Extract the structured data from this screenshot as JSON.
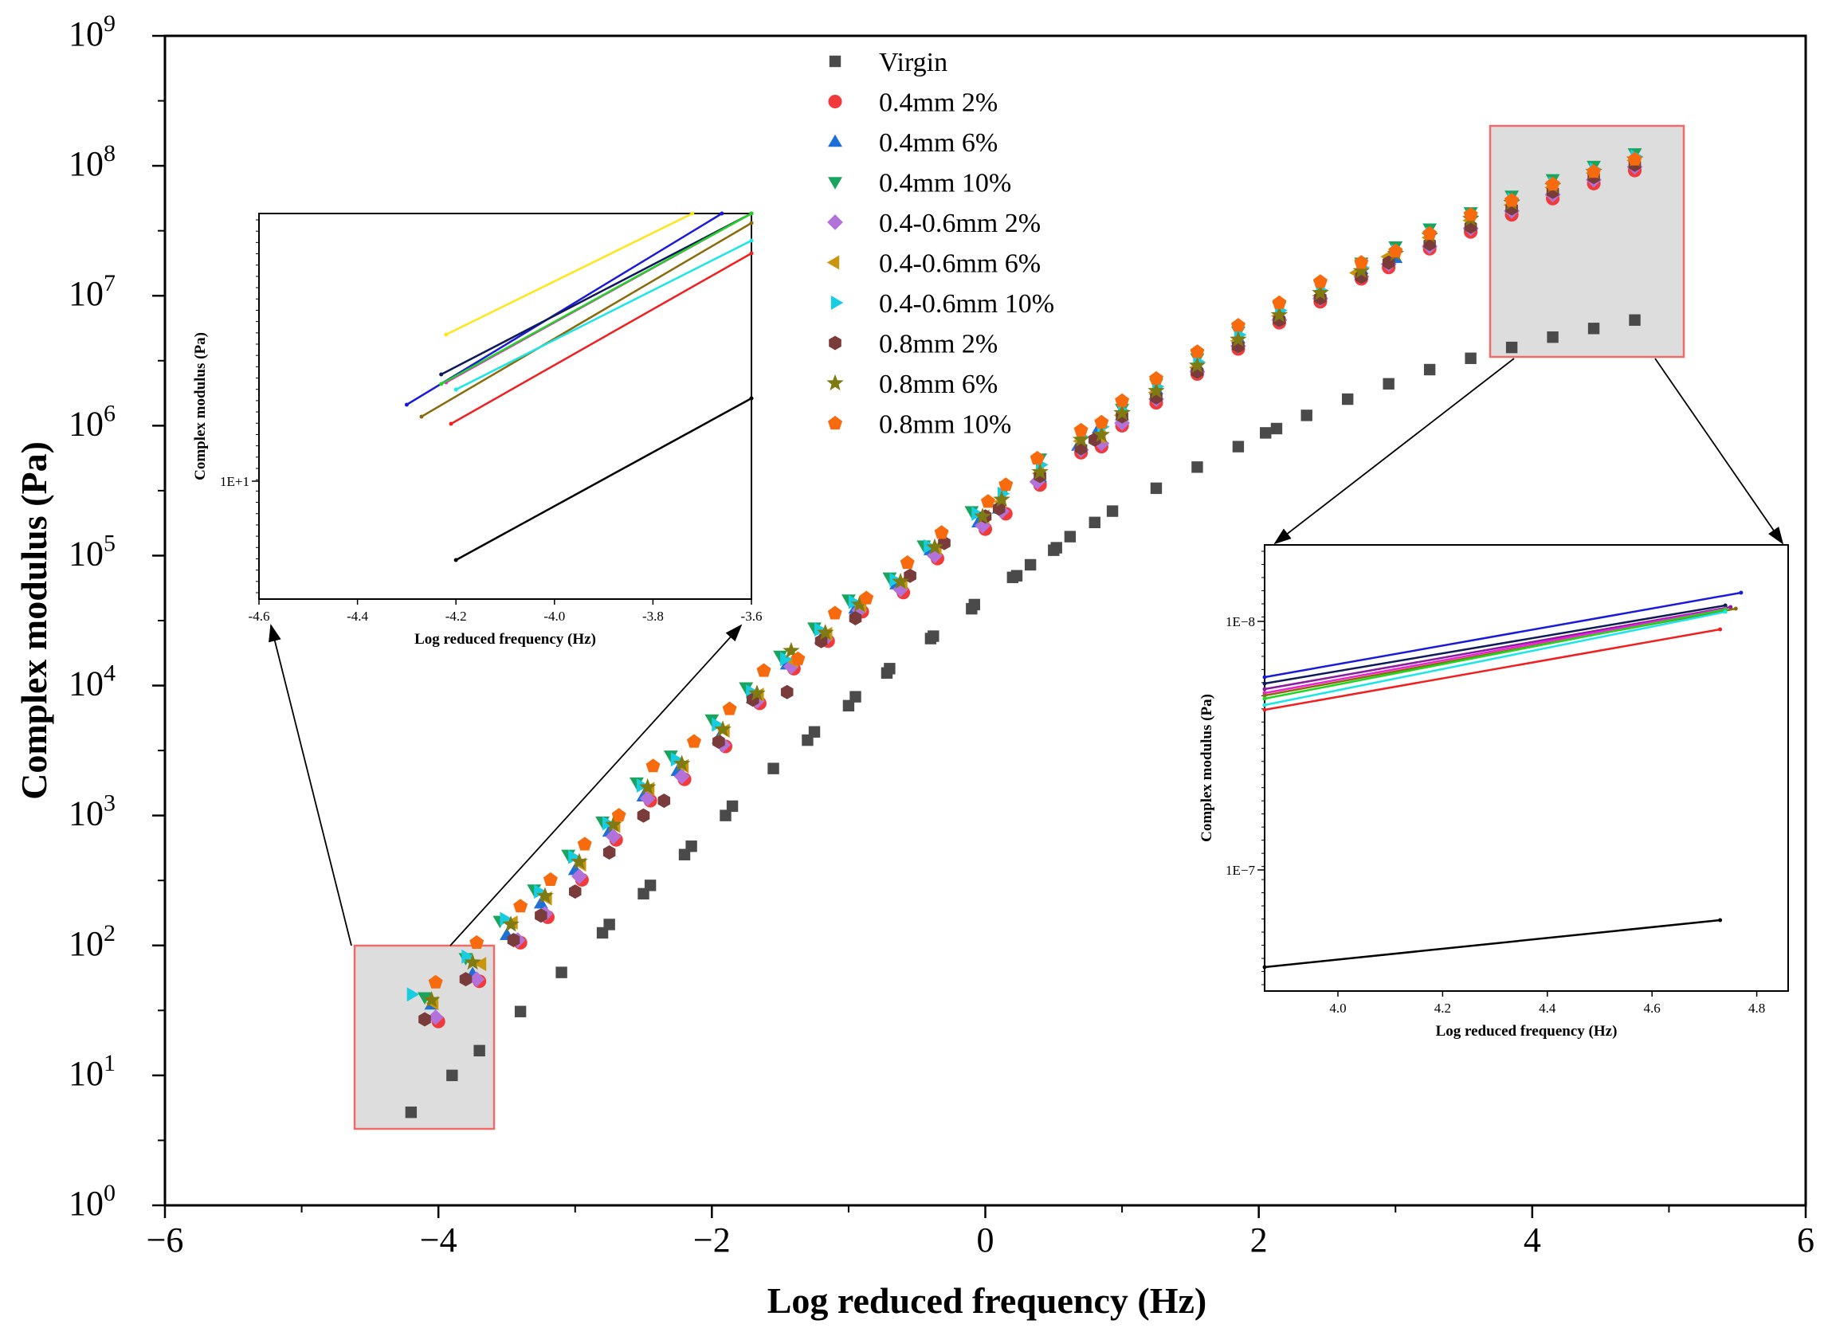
{
  "chart_data": {
    "type": "scatter",
    "title": "",
    "xlabel": "Log reduced frequency (Hz)",
    "ylabel": "Complex modulus (Pa)",
    "xlim": [
      -6,
      6
    ],
    "ylim_log10": [
      0,
      9
    ],
    "yscale": "log",
    "x_ticks": [
      "−6",
      "−4",
      "−2",
      "0",
      "2",
      "4",
      "6"
    ],
    "y_tick_base": "10",
    "y_tick_exponents": [
      "0",
      "1",
      "2",
      "3",
      "4",
      "5",
      "6",
      "7",
      "8",
      "9"
    ],
    "legend_position": "top-center",
    "series": [
      {
        "name": "Virgin",
        "marker": "square",
        "color": "#4a4a4a",
        "x": [
          -4.2,
          -3.9,
          -3.7,
          -3.4,
          -3.1,
          -2.8,
          -2.75,
          -2.5,
          -2.45,
          -2.2,
          -2.15,
          -1.9,
          -1.85,
          -1.55,
          -1.3,
          -1.25,
          -1.0,
          -0.95,
          -0.72,
          -0.7,
          -0.4,
          -0.38,
          -0.1,
          -0.08,
          0.2,
          0.23,
          0.33,
          0.5,
          0.52,
          0.62,
          0.8,
          0.93,
          1.25,
          1.55,
          1.85,
          2.05,
          2.13,
          2.35,
          2.65,
          2.95,
          3.25,
          3.55,
          3.85,
          4.15,
          4.45,
          4.75
        ],
        "y": [
          5.2,
          10,
          15.5,
          31,
          62,
          125,
          145,
          250,
          290,
          500,
          580,
          1000,
          1180,
          2300,
          3800,
          4400,
          7000,
          8200,
          12500,
          13500,
          23000,
          24000,
          39000,
          42000,
          68000,
          70000,
          85000,
          110000,
          115000,
          140000,
          180000,
          220000,
          330000,
          480000,
          690000,
          880000,
          950000,
          1200000,
          1600000,
          2100000,
          2700000,
          3300000,
          4000000,
          4800000,
          5600000,
          6500000
        ]
      },
      {
        "name": "0.4mm 2%",
        "marker": "circle",
        "color": "#f23a3a",
        "x": [
          -4.0,
          -3.7,
          -3.4,
          -3.2,
          -2.95,
          -2.7,
          -2.45,
          -2.2,
          -1.9,
          -1.65,
          -1.4,
          -1.15,
          -0.9,
          -0.6,
          -0.35,
          0.0,
          0.15,
          0.4,
          0.7,
          0.85,
          1.0,
          1.25,
          1.55,
          1.85,
          2.15,
          2.45,
          2.75,
          2.95,
          3.25,
          3.55,
          3.85,
          4.15,
          4.45,
          4.75
        ],
        "y": [
          26,
          53,
          105,
          165,
          320,
          650,
          1300,
          1900,
          3400,
          7300,
          13500,
          22000,
          37000,
          52000,
          95000,
          160000,
          210000,
          350000,
          620000,
          690000,
          1000000,
          1500000,
          2500000,
          3900000,
          6200000,
          9000000,
          13500000,
          16500000,
          23000000,
          31000000,
          42000000,
          56000000,
          73000000,
          92000000
        ]
      },
      {
        "name": "0.4mm 6%",
        "marker": "triangle-up",
        "color": "#1e6fd9",
        "x": [
          -4.05,
          -3.75,
          -3.5,
          -3.25,
          -3.0,
          -2.75,
          -2.5,
          -2.25,
          -1.95,
          -1.7,
          -1.45,
          -1.2,
          -0.95,
          -0.65,
          -0.4,
          -0.05,
          0.1,
          0.4,
          0.68,
          0.83,
          1.0,
          1.25,
          1.55,
          1.85,
          2.15,
          2.45,
          2.75,
          3.0,
          3.25,
          3.55,
          3.85,
          4.15,
          4.45,
          4.75
        ],
        "y": [
          35,
          60,
          120,
          210,
          380,
          750,
          1400,
          2200,
          3900,
          8000,
          14500,
          23000,
          39000,
          60000,
          110000,
          180000,
          230000,
          400000,
          700000,
          950000,
          1200000,
          1900000,
          2900000,
          4700000,
          7200000,
          10500000,
          16000000,
          19500000,
          26000000,
          35000000,
          48000000,
          64000000,
          84000000,
          106000000
        ]
      },
      {
        "name": "0.4mm 10%",
        "marker": "triangle-down",
        "color": "#1aa55e",
        "x": [
          -4.1,
          -3.8,
          -3.55,
          -3.3,
          -3.05,
          -2.8,
          -2.55,
          -2.3,
          -2.0,
          -1.75,
          -1.5,
          -1.25,
          -1.0,
          -0.7,
          -0.45,
          -0.1,
          0.15,
          0.4,
          0.7,
          0.85,
          1.0,
          1.25,
          1.55,
          1.85,
          2.15,
          2.45,
          2.75,
          3.0,
          3.25,
          3.55,
          3.85,
          4.15,
          4.45,
          4.75
        ],
        "y": [
          40,
          80,
          155,
          270,
          500,
          900,
          1800,
          2900,
          5500,
          9700,
          17000,
          28000,
          46000,
          68000,
          120000,
          220000,
          340000,
          560000,
          880000,
          1000000,
          1350000,
          2100000,
          3300000,
          5300000,
          8200000,
          12000000,
          18000000,
          24000000,
          33000000,
          44000000,
          59000000,
          79000000,
          100000000,
          125000000
        ]
      },
      {
        "name": "0.4-0.6mm 2%",
        "marker": "diamond",
        "color": "#b272d9",
        "x": [
          -4.02,
          -3.72,
          -3.42,
          -3.22,
          -2.97,
          -2.72,
          -2.47,
          -2.22,
          -1.92,
          -1.67,
          -1.42,
          -1.17,
          -0.92,
          -0.62,
          -0.37,
          -0.02,
          0.12,
          0.38,
          0.7,
          0.85,
          1.0,
          1.25,
          1.55,
          1.85,
          2.15,
          2.45,
          2.75,
          2.95,
          3.25,
          3.55,
          3.85,
          4.15,
          4.45,
          4.75
        ],
        "y": [
          28,
          55,
          110,
          175,
          340,
          690,
          1350,
          2000,
          3500,
          7600,
          14000,
          23000,
          38000,
          55000,
          100000,
          170000,
          220000,
          370000,
          650000,
          730000,
          1050000,
          1600000,
          2600000,
          4100000,
          6500000,
          9500000,
          14000000,
          17500000,
          24000000,
          33000000,
          45000000,
          60000000,
          78000000,
          98000000
        ]
      },
      {
        "name": "0.4-0.6mm 6%",
        "marker": "triangle-left",
        "color": "#c9960e",
        "x": [
          -4.03,
          -3.68,
          -3.45,
          -3.2,
          -2.95,
          -2.7,
          -2.45,
          -2.2,
          -1.9,
          -1.65,
          -1.4,
          -1.15,
          -0.9,
          -0.6,
          -0.35,
          0.0,
          0.12,
          0.4,
          0.7,
          0.85,
          1.0,
          1.25,
          1.55,
          1.85,
          2.15,
          2.45,
          2.72,
          2.95,
          3.25,
          3.55,
          3.85,
          4.15,
          4.45,
          4.75
        ],
        "y": [
          36,
          72,
          150,
          230,
          420,
          830,
          1600,
          2400,
          4500,
          8500,
          15500,
          25000,
          41000,
          62000,
          115000,
          200000,
          260000,
          430000,
          760000,
          820000,
          1200000,
          1800000,
          2800000,
          4500000,
          7000000,
          10000000,
          15000000,
          20000000,
          28000000,
          38000000,
          50000000,
          68000000,
          88000000,
          110000000
        ]
      },
      {
        "name": "0.4-0.6mm 10%",
        "marker": "triangle-right",
        "color": "#19cde0",
        "x": [
          -4.2,
          -3.8,
          -3.52,
          -3.27,
          -3.02,
          -2.77,
          -2.52,
          -2.27,
          -1.97,
          -1.72,
          -1.47,
          -1.22,
          -0.97,
          -0.67,
          -0.42,
          -0.07,
          0.12,
          0.4,
          0.7,
          0.85,
          1.0,
          1.25,
          1.55,
          1.85,
          2.15,
          2.45,
          2.75,
          3.0,
          3.25,
          3.55,
          3.85,
          4.15,
          4.45,
          4.75
        ],
        "y": [
          42,
          82,
          160,
          260,
          480,
          870,
          1700,
          2700,
          5000,
          9000,
          16000,
          27000,
          44000,
          65000,
          118000,
          210000,
          300000,
          500000,
          820000,
          980000,
          1300000,
          2000000,
          3100000,
          5000000,
          7700000,
          11000000,
          16500000,
          22000000,
          30000000,
          41000000,
          55000000,
          73000000,
          94000000,
          118000000
        ]
      },
      {
        "name": "0.8mm 2%",
        "marker": "hexagon",
        "color": "#7a3b3b",
        "x": [
          -4.1,
          -3.8,
          -3.45,
          -3.25,
          -3.0,
          -2.75,
          -2.5,
          -2.35,
          -1.95,
          -1.7,
          -1.45,
          -1.2,
          -0.95,
          -0.55,
          -0.3,
          0.0,
          0.1,
          0.4,
          0.7,
          0.8,
          1.0,
          1.25,
          1.55,
          1.85,
          2.15,
          2.45,
          2.75,
          2.95,
          3.25,
          3.55,
          3.85,
          4.15,
          4.45,
          4.75
        ],
        "y": [
          27,
          55,
          110,
          170,
          260,
          520,
          1000,
          1300,
          3700,
          7800,
          8900,
          22000,
          33000,
          70000,
          125000,
          200000,
          230000,
          410000,
          670000,
          780000,
          1180000,
          1650000,
          2600000,
          4100000,
          6500000,
          9600000,
          14000000,
          18000000,
          25000000,
          34000000,
          47000000,
          63000000,
          82000000,
          102000000
        ]
      },
      {
        "name": "0.8mm 6%",
        "marker": "star",
        "color": "#7f7a12",
        "x": [
          -4.05,
          -3.75,
          -3.47,
          -3.22,
          -2.97,
          -2.72,
          -2.47,
          -2.22,
          -1.92,
          -1.67,
          -1.42,
          -1.17,
          -0.92,
          -0.62,
          -0.37,
          -0.02,
          0.12,
          0.4,
          0.7,
          0.85,
          1.0,
          1.25,
          1.55,
          1.85,
          2.15,
          2.45,
          2.75,
          3.0,
          3.25,
          3.55,
          3.85,
          4.15,
          4.45,
          4.75
        ],
        "y": [
          38,
          74,
          145,
          240,
          440,
          850,
          1650,
          2500,
          4600,
          8700,
          18500,
          25500,
          42000,
          63000,
          116000,
          200000,
          270000,
          440000,
          780000,
          850000,
          1250000,
          1850000,
          2900000,
          4600000,
          7100000,
          10500000,
          15500000,
          21000000,
          29000000,
          39000000,
          52000000,
          70000000,
          90000000,
          112000000
        ]
      },
      {
        "name": "0.8mm 10%",
        "marker": "pentagon",
        "color": "#f76b0e",
        "x": [
          -4.02,
          -3.72,
          -3.4,
          -3.18,
          -2.93,
          -2.68,
          -2.43,
          -2.13,
          -1.87,
          -1.62,
          -1.37,
          -1.1,
          -0.87,
          -0.57,
          -0.32,
          0.02,
          0.15,
          0.38,
          0.7,
          0.85,
          1.0,
          1.25,
          1.55,
          1.85,
          2.15,
          2.45,
          2.75,
          3.0,
          3.25,
          3.55,
          3.85,
          4.15,
          4.45,
          4.75
        ],
        "y": [
          52,
          105,
          200,
          320,
          600,
          1000,
          2400,
          3700,
          6600,
          13000,
          16000,
          36000,
          47000,
          88000,
          150000,
          260000,
          350000,
          560000,
          920000,
          1060000,
          1550000,
          2300000,
          3700000,
          5900000,
          8800000,
          12800000,
          18000000,
          22000000,
          30000000,
          42000000,
          54000000,
          72000000,
          90000000,
          112000000
        ]
      }
    ],
    "insets": [
      {
        "position": "upper-left",
        "xlabel": "Log reduced frequency (Hz)",
        "ylabel": "Complex modulus (Pa)",
        "x_ticks": [
          "-4.6",
          "-4.4",
          "-4.2",
          "-4.0",
          "-3.8",
          "-3.6"
        ],
        "xlim": [
          -4.6,
          -3.6
        ],
        "y_tick_label": "1E+1",
        "lines": [
          {
            "color": "#ffe61a",
            "x": [
              -4.22,
              -3.72
            ]
          },
          {
            "color": "#1a1adb",
            "x": [
              -4.3,
              -3.66
            ]
          },
          {
            "color": "#0f1a5a",
            "x": [
              -4.23,
              -3.6
            ]
          },
          {
            "color": "#f01fd8",
            "x": [
              -4.22,
              -3.6
            ]
          },
          {
            "color": "#1fd61f",
            "x": [
              -4.23,
              -3.6
            ]
          },
          {
            "color": "#8a6a0a",
            "x": [
              -4.27,
              -3.6
            ]
          },
          {
            "color": "#19e6e6",
            "x": [
              -4.2,
              -3.6
            ]
          },
          {
            "color": "#f02020",
            "x": [
              -4.21,
              -3.6
            ]
          },
          {
            "color": "#000000",
            "x": [
              -4.2,
              -3.6
            ]
          }
        ]
      },
      {
        "position": "lower-right",
        "xlabel": "Log reduced frequency (Hz)",
        "ylabel": "Complex modulus (Pa)",
        "x_ticks": [
          "4.0",
          "4.2",
          "4.4",
          "4.6",
          "4.8"
        ],
        "xlim": [
          3.86,
          4.86
        ],
        "y_tick_labels": [
          "1E−8",
          "1E−7"
        ],
        "lines": [
          {
            "color": "#1a1adb",
            "x": [
              3.86,
              4.77
            ]
          },
          {
            "color": "#0f1a5a",
            "x": [
              3.86,
              4.74
            ]
          },
          {
            "color": "#8a1aa0",
            "x": [
              3.86,
              4.75
            ]
          },
          {
            "color": "#f01fd8",
            "x": [
              3.86,
              4.74
            ]
          },
          {
            "color": "#8a6a0a",
            "x": [
              3.86,
              4.76
            ]
          },
          {
            "color": "#1fd61f",
            "x": [
              3.86,
              4.74
            ]
          },
          {
            "color": "#19e6e6",
            "x": [
              3.86,
              4.74
            ]
          },
          {
            "color": "#f02020",
            "x": [
              3.86,
              4.73
            ]
          },
          {
            "color": "#000000",
            "x": [
              3.86,
              4.73
            ]
          }
        ]
      }
    ]
  }
}
